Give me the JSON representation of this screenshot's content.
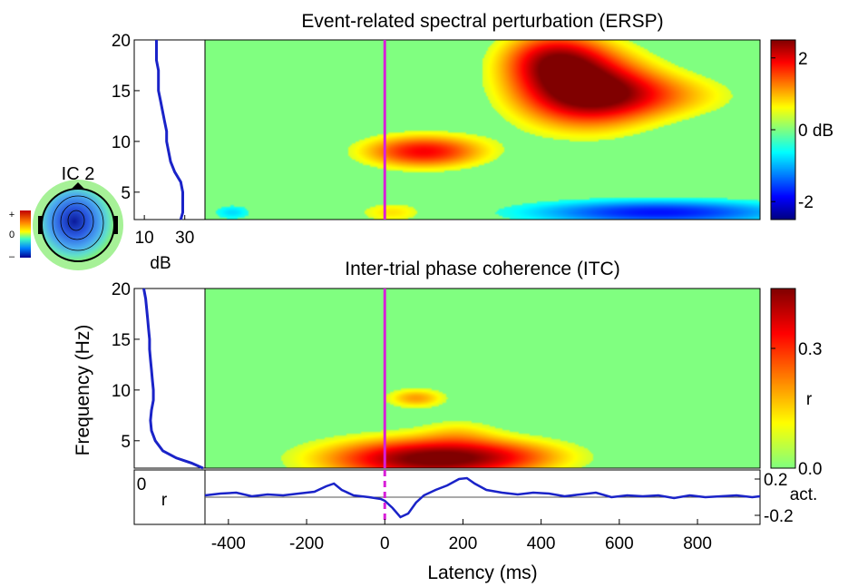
{
  "chart_data": [
    {
      "type": "heatmap",
      "title": "Event-related spectral perturbation (ERSP)",
      "component_label": "IC 2",
      "xlim": [
        -460,
        960
      ],
      "ylim": [
        2.3,
        20
      ],
      "y_ticks": [
        5,
        10,
        15,
        20
      ],
      "baseline_color": "#80f07c",
      "event_time": 0,
      "blobs": [
        {
          "t": 510,
          "f": 15,
          "st": 130,
          "sf": 2.7,
          "v": 2.4
        },
        {
          "t": 430,
          "f": 18.3,
          "st": 95,
          "sf": 2.0,
          "v": 1.6
        },
        {
          "t": 690,
          "f": 14.5,
          "st": 160,
          "sf": 1.6,
          "v": 0.9
        },
        {
          "t": 100,
          "f": 9.0,
          "st": 115,
          "sf": 1.2,
          "v": 1.9
        },
        {
          "t": 20,
          "f": 3.0,
          "st": 70,
          "sf": 0.8,
          "v": 0.8
        },
        {
          "t": 700,
          "f": 3.0,
          "st": 250,
          "sf": 0.9,
          "v": -1.8
        },
        {
          "t": -390,
          "f": 3.0,
          "st": 40,
          "sf": 0.6,
          "v": -0.8
        }
      ],
      "colorbar": {
        "ticks": [
          2,
          0,
          -2
        ],
        "tick_labels": [
          "2",
          "0 dB",
          "-2"
        ],
        "range": [
          -2.5,
          2.5
        ]
      },
      "side_panel": {
        "x_ticks": [
          10,
          30
        ],
        "xlabel": "dB",
        "xlim": [
          5,
          40
        ],
        "spectrum": [
          {
            "f": 2.3,
            "v": 28
          },
          {
            "f": 3,
            "v": 29
          },
          {
            "f": 4,
            "v": 29
          },
          {
            "f": 5,
            "v": 29
          },
          {
            "f": 6,
            "v": 28
          },
          {
            "f": 7,
            "v": 25
          },
          {
            "f": 8,
            "v": 23
          },
          {
            "f": 9,
            "v": 22
          },
          {
            "f": 10,
            "v": 21
          },
          {
            "f": 11,
            "v": 21
          },
          {
            "f": 12,
            "v": 20
          },
          {
            "f": 13,
            "v": 19
          },
          {
            "f": 14,
            "v": 18
          },
          {
            "f": 15,
            "v": 17
          },
          {
            "f": 16,
            "v": 17
          },
          {
            "f": 17,
            "v": 17
          },
          {
            "f": 18,
            "v": 16
          },
          {
            "f": 19,
            "v": 16
          },
          {
            "f": 20,
            "v": 16
          }
        ]
      }
    },
    {
      "type": "heatmap",
      "title": "Inter-trial phase coherence (ITC)",
      "ylabel": "Frequency (Hz)",
      "xlim": [
        -460,
        960
      ],
      "ylim": [
        2.3,
        20
      ],
      "y_ticks": [
        5,
        10,
        15,
        20
      ],
      "event_time": 0,
      "blobs": [
        {
          "t": 100,
          "f": 3.2,
          "st": 190,
          "sf": 1.5,
          "v": 0.44
        },
        {
          "t": 320,
          "f": 3.5,
          "st": 140,
          "sf": 1.2,
          "v": 0.12
        },
        {
          "t": 80,
          "f": 9.2,
          "st": 55,
          "sf": 0.7,
          "v": 0.2
        },
        {
          "t": 190,
          "f": 6,
          "st": 70,
          "sf": 1.0,
          "v": 0.08
        }
      ],
      "colorbar": {
        "ticks": [
          0.3,
          0.0
        ],
        "tick_labels": [
          "0.3",
          "0.0"
        ],
        "label": "r",
        "range": [
          0,
          0.45
        ]
      },
      "side_panel": {
        "x_ticks": [
          0
        ],
        "xlabel": "r",
        "xlim": [
          -0.02,
          0.35
        ],
        "spectrum": [
          {
            "f": 2.3,
            "v": 0.34
          },
          {
            "f": 2.8,
            "v": 0.28
          },
          {
            "f": 3.3,
            "v": 0.2
          },
          {
            "f": 4,
            "v": 0.13
          },
          {
            "f": 5,
            "v": 0.09
          },
          {
            "f": 6,
            "v": 0.07
          },
          {
            "f": 7,
            "v": 0.065
          },
          {
            "f": 8,
            "v": 0.07
          },
          {
            "f": 9,
            "v": 0.08
          },
          {
            "f": 10,
            "v": 0.08
          },
          {
            "f": 11,
            "v": 0.075
          },
          {
            "f": 12,
            "v": 0.07
          },
          {
            "f": 13,
            "v": 0.065
          },
          {
            "f": 14,
            "v": 0.06
          },
          {
            "f": 15,
            "v": 0.06
          },
          {
            "f": 16,
            "v": 0.055
          },
          {
            "f": 17,
            "v": 0.05
          },
          {
            "f": 18,
            "v": 0.045
          },
          {
            "f": 19,
            "v": 0.04
          },
          {
            "f": 20,
            "v": 0.03
          }
        ]
      }
    },
    {
      "type": "line",
      "xlabel": "Latency (ms)",
      "xlim": [
        -460,
        960
      ],
      "x_ticks": [
        -400,
        -200,
        0,
        200,
        400,
        600,
        800
      ],
      "ylim": [
        -0.3,
        0.3
      ],
      "y_ticks": [
        0.2,
        -0.2
      ],
      "y_label": "act.",
      "x": [
        -460,
        -420,
        -380,
        -340,
        -300,
        -260,
        -220,
        -180,
        -150,
        -130,
        -110,
        -80,
        -40,
        -10,
        0,
        20,
        40,
        60,
        80,
        100,
        130,
        160,
        190,
        210,
        230,
        260,
        300,
        340,
        380,
        420,
        460,
        500,
        540,
        580,
        620,
        660,
        700,
        740,
        780,
        820,
        860,
        900,
        940,
        960
      ],
      "values": [
        0.02,
        0.04,
        0.05,
        0.01,
        0.03,
        0.02,
        0.04,
        0.06,
        0.12,
        0.15,
        0.08,
        0.02,
        0.0,
        -0.02,
        -0.04,
        -0.12,
        -0.22,
        -0.18,
        -0.06,
        0.02,
        0.08,
        0.13,
        0.2,
        0.21,
        0.15,
        0.08,
        0.05,
        0.03,
        0.05,
        0.04,
        0.01,
        0.03,
        0.05,
        0.0,
        0.02,
        0.01,
        0.02,
        -0.01,
        0.02,
        0.0,
        0.01,
        0.02,
        0.0,
        0.01
      ]
    }
  ],
  "topo_scale": {
    "plus": "+",
    "zero": "0",
    "minus": "–"
  }
}
